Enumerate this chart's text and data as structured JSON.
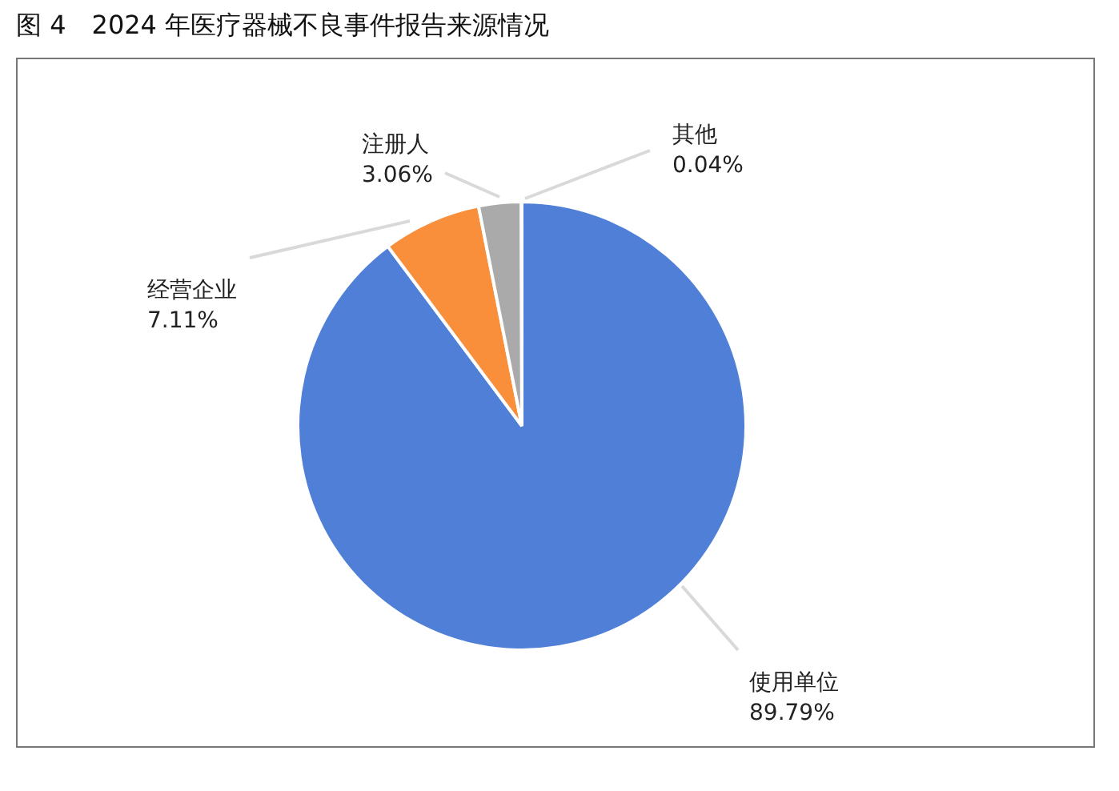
{
  "chart_data": {
    "type": "pie",
    "title": "图 4　2024 年医疗器械不良事件报告来源情况",
    "categories": [
      "使用单位",
      "经营企业",
      "注册人",
      "其他"
    ],
    "values": [
      89.79,
      7.11,
      3.06,
      0.04
    ],
    "value_labels": [
      "89.79%",
      "7.11%",
      "3.06%",
      "0.04%"
    ],
    "colors": [
      "#507fd8",
      "#f98e3b",
      "#aaaaaa",
      "#6ab04c"
    ],
    "legend": false
  }
}
